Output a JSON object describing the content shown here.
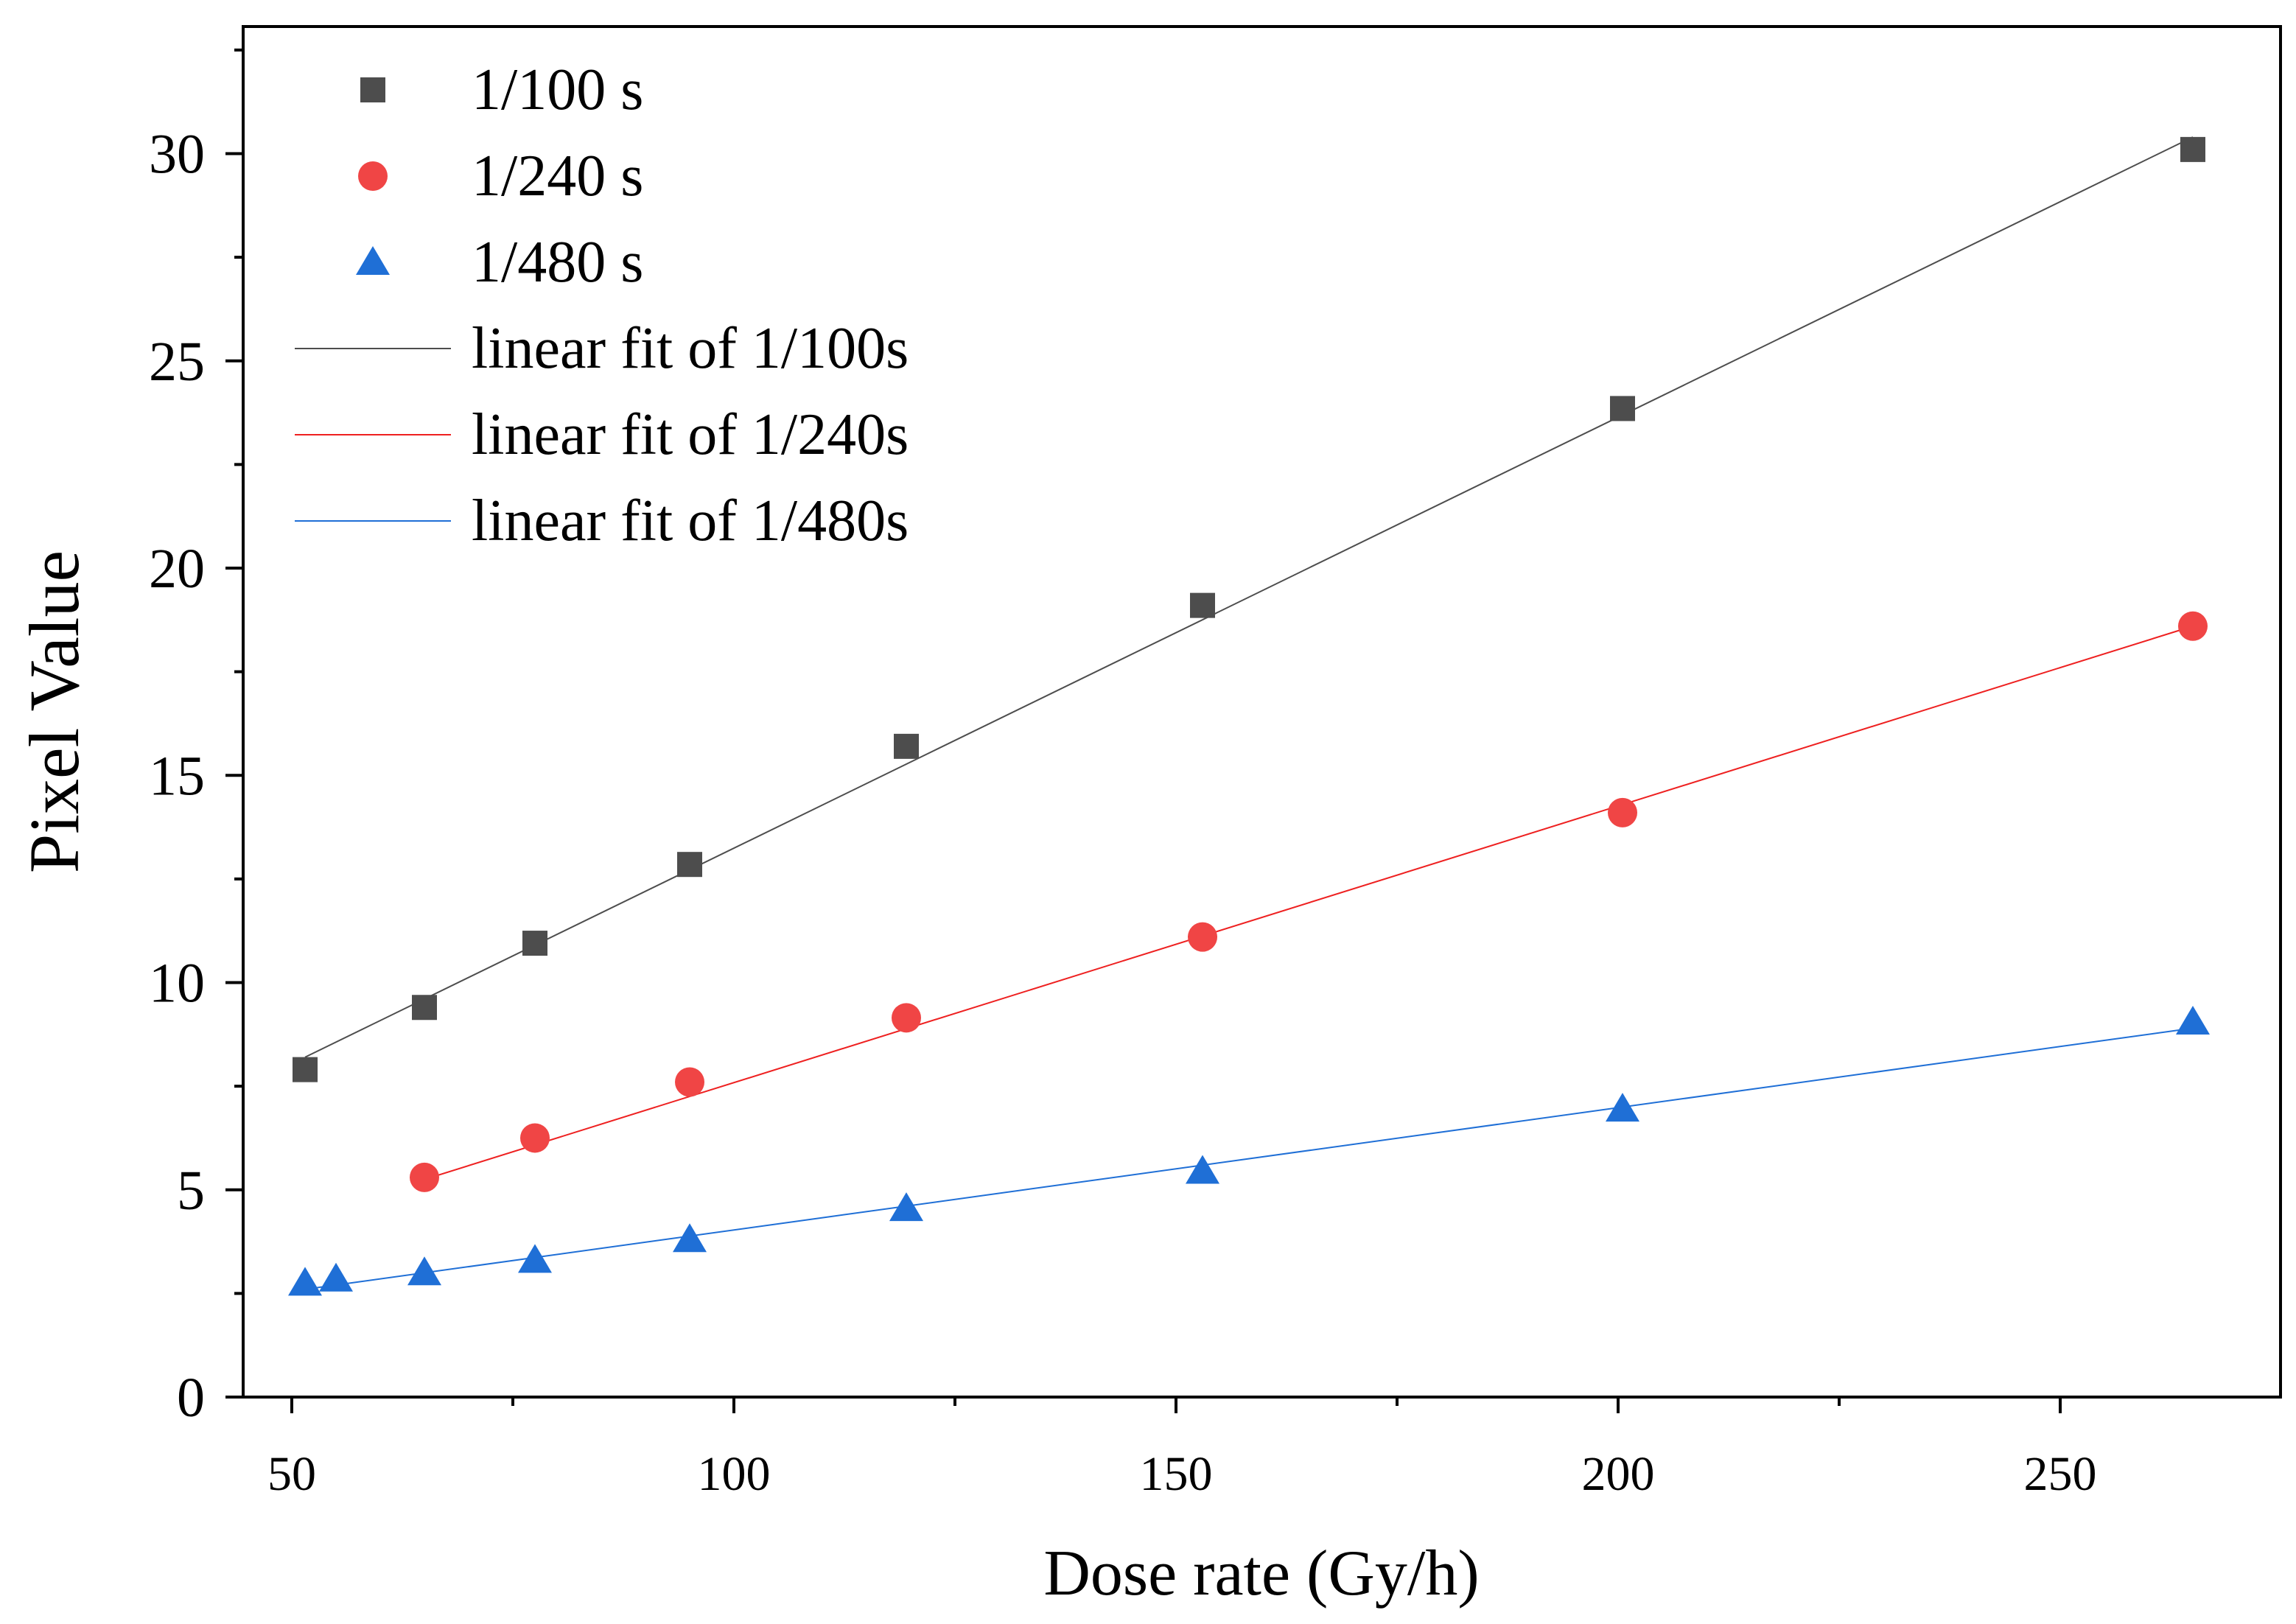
{
  "chart_data": {
    "type": "scatter",
    "xlabel": "Dose rate (Gy/h)",
    "ylabel": "Pixel Value",
    "xlim": [
      45,
      275
    ],
    "ylim": [
      0,
      33
    ],
    "xticks": [
      50,
      100,
      150,
      200,
      250
    ],
    "yticks": [
      0,
      5,
      10,
      15,
      20,
      25,
      30
    ],
    "x_minor_ticks": [
      75,
      125,
      175,
      225,
      275
    ],
    "y_minor_ticks": [
      2.5,
      7.5,
      12.5,
      17.5,
      22.5,
      27.5,
      32.5
    ],
    "grid": false,
    "legend_position": "top-left",
    "series": [
      {
        "name": "1/100 s",
        "marker": "square",
        "color": "#4d4d4d",
        "points": [
          [
            51.5,
            7.9
          ],
          [
            65.0,
            9.4
          ],
          [
            77.5,
            10.95
          ],
          [
            95.0,
            12.85
          ],
          [
            119.5,
            15.7
          ],
          [
            153.0,
            19.1
          ],
          [
            200.5,
            23.85
          ],
          [
            265.0,
            30.1
          ]
        ]
      },
      {
        "name": "1/240 s",
        "marker": "circle",
        "color": "#f04545",
        "points": [
          [
            65.0,
            5.3
          ],
          [
            77.5,
            6.25
          ],
          [
            95.0,
            7.6
          ],
          [
            119.5,
            9.15
          ],
          [
            153.0,
            11.1
          ],
          [
            200.5,
            14.1
          ],
          [
            265.0,
            18.6
          ]
        ]
      },
      {
        "name": "1/480 s",
        "marker": "triangle",
        "color": "#1f6fd6",
        "points": [
          [
            51.5,
            2.75
          ],
          [
            55.0,
            2.85
          ],
          [
            65.0,
            3.0
          ],
          [
            77.5,
            3.3
          ],
          [
            95.0,
            3.8
          ],
          [
            119.5,
            4.55
          ],
          [
            153.0,
            5.45
          ],
          [
            200.5,
            6.95
          ],
          [
            265.0,
            9.05
          ]
        ]
      }
    ],
    "fits": [
      {
        "name": "linear fit of 1/100s",
        "color": "#4d4d4d",
        "x_range": [
          51.5,
          265.0
        ],
        "y_range": [
          8.2,
          30.4
        ]
      },
      {
        "name": "linear fit of 1/240s",
        "color": "#ee2020",
        "x_range": [
          65.0,
          265.0
        ],
        "y_range": [
          5.25,
          18.6
        ]
      },
      {
        "name": "linear fit of 1/480s",
        "color": "#1f6fd6",
        "x_range": [
          51.5,
          265.0
        ],
        "y_range": [
          2.6,
          8.9
        ]
      }
    ]
  }
}
